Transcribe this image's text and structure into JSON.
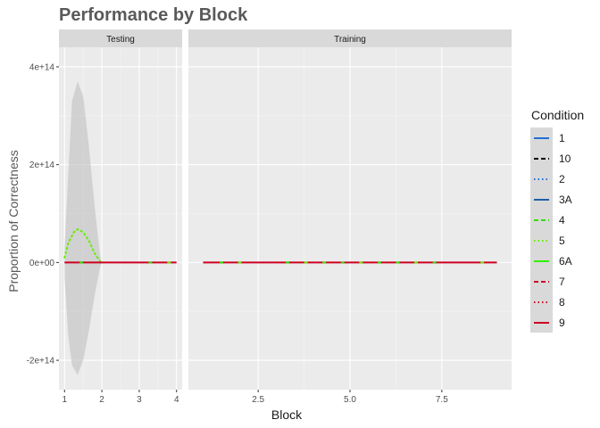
{
  "chart_data": {
    "type": "line",
    "title": "Performance by Block",
    "xlabel": "Block",
    "ylabel": "Proportion of Correctness",
    "ylim": [
      -260000000000000.0,
      440000000000000.0
    ],
    "yticks": [
      {
        "value": -200000000000000.0,
        "label": "-2e+14"
      },
      {
        "value": 0,
        "label": "0e+00"
      },
      {
        "value": 200000000000000.0,
        "label": "2e+14"
      },
      {
        "value": 400000000000000.0,
        "label": "4e+14"
      }
    ],
    "grid": true,
    "legend": {
      "title": "Condition",
      "position": "right",
      "entries": [
        {
          "label": "1",
          "color": "#1f6fd6",
          "dash": "solid"
        },
        {
          "label": "10",
          "color": "#000000",
          "dash": "dashed"
        },
        {
          "label": "2",
          "color": "#1f6fd6",
          "dash": "dotted"
        },
        {
          "label": "3A",
          "color": "#1f5fa8",
          "dash": "solid"
        },
        {
          "label": "4",
          "color": "#33dd00",
          "dash": "dashed"
        },
        {
          "label": "5",
          "color": "#66ee00",
          "dash": "dotted"
        },
        {
          "label": "6A",
          "color": "#33ee00",
          "dash": "solid"
        },
        {
          "label": "7",
          "color": "#cc0022",
          "dash": "dashed"
        },
        {
          "label": "8",
          "color": "#cc0022",
          "dash": "dotted"
        },
        {
          "label": "9",
          "color": "#cc0022",
          "dash": "solid"
        }
      ]
    },
    "facets": [
      {
        "label": "Testing",
        "xlim": [
          0.85,
          4.15
        ],
        "xticks": [
          {
            "value": 1,
            "label": "1"
          },
          {
            "value": 2,
            "label": "2"
          },
          {
            "value": 3,
            "label": "3"
          },
          {
            "value": 4,
            "label": "4"
          }
        ],
        "ribbon": [
          {
            "x": 1.0,
            "ymin": -30000000000000.0,
            "ymax": 30000000000000.0
          },
          {
            "x": 1.1,
            "ymin": -150000000000000.0,
            "ymax": 180000000000000.0
          },
          {
            "x": 1.2,
            "ymin": -210000000000000.0,
            "ymax": 330000000000000.0
          },
          {
            "x": 1.35,
            "ymin": -230000000000000.0,
            "ymax": 370000000000000.0
          },
          {
            "x": 1.5,
            "ymin": -200000000000000.0,
            "ymax": 340000000000000.0
          },
          {
            "x": 1.65,
            "ymin": -140000000000000.0,
            "ymax": 240000000000000.0
          },
          {
            "x": 1.8,
            "ymin": -70000000000000.0,
            "ymax": 120000000000000.0
          },
          {
            "x": 1.95,
            "ymin": -10000000000000.0,
            "ymax": 15000000000000.0
          },
          {
            "x": 2.0,
            "ymin": 0,
            "ymax": 0
          }
        ],
        "peak_series": {
          "condition": "5",
          "points": [
            {
              "x": 1.0,
              "y": 10000000000000.0
            },
            {
              "x": 1.1,
              "y": 40000000000000.0
            },
            {
              "x": 1.25,
              "y": 62000000000000.0
            },
            {
              "x": 1.35,
              "y": 68000000000000.0
            },
            {
              "x": 1.5,
              "y": 62000000000000.0
            },
            {
              "x": 1.65,
              "y": 45000000000000.0
            },
            {
              "x": 1.8,
              "y": 20000000000000.0
            },
            {
              "x": 1.95,
              "y": 2000000000000.0
            },
            {
              "x": 2.0,
              "y": 0
            }
          ]
        },
        "flat_series": {
          "condition": "9",
          "x": [
            1,
            4
          ],
          "y": 0
        },
        "markers": [
          {
            "x": 1.45,
            "condition": "4"
          },
          {
            "x": 3.3,
            "condition": "4"
          },
          {
            "x": 3.8,
            "condition": "5"
          }
        ]
      },
      {
        "label": "Training",
        "xlim": [
          0.6,
          9.4
        ],
        "xticks": [
          {
            "value": 2.5,
            "label": "2.5"
          },
          {
            "value": 5,
            "label": "5.0"
          },
          {
            "value": 7.5,
            "label": "7.5"
          }
        ],
        "flat_series": {
          "condition": "9",
          "x": [
            1,
            9
          ],
          "y": 0
        },
        "markers": [
          {
            "x": 1.5,
            "condition": "4"
          },
          {
            "x": 2.0,
            "condition": "5"
          },
          {
            "x": 3.3,
            "condition": "4"
          },
          {
            "x": 3.8,
            "condition": "5"
          },
          {
            "x": 4.3,
            "condition": "6A"
          },
          {
            "x": 4.8,
            "condition": "4"
          },
          {
            "x": 5.3,
            "condition": "5"
          },
          {
            "x": 5.8,
            "condition": "4"
          },
          {
            "x": 6.3,
            "condition": "6A"
          },
          {
            "x": 6.8,
            "condition": "5"
          },
          {
            "x": 7.3,
            "condition": "4"
          },
          {
            "x": 8.6,
            "condition": "5"
          }
        ]
      }
    ]
  }
}
